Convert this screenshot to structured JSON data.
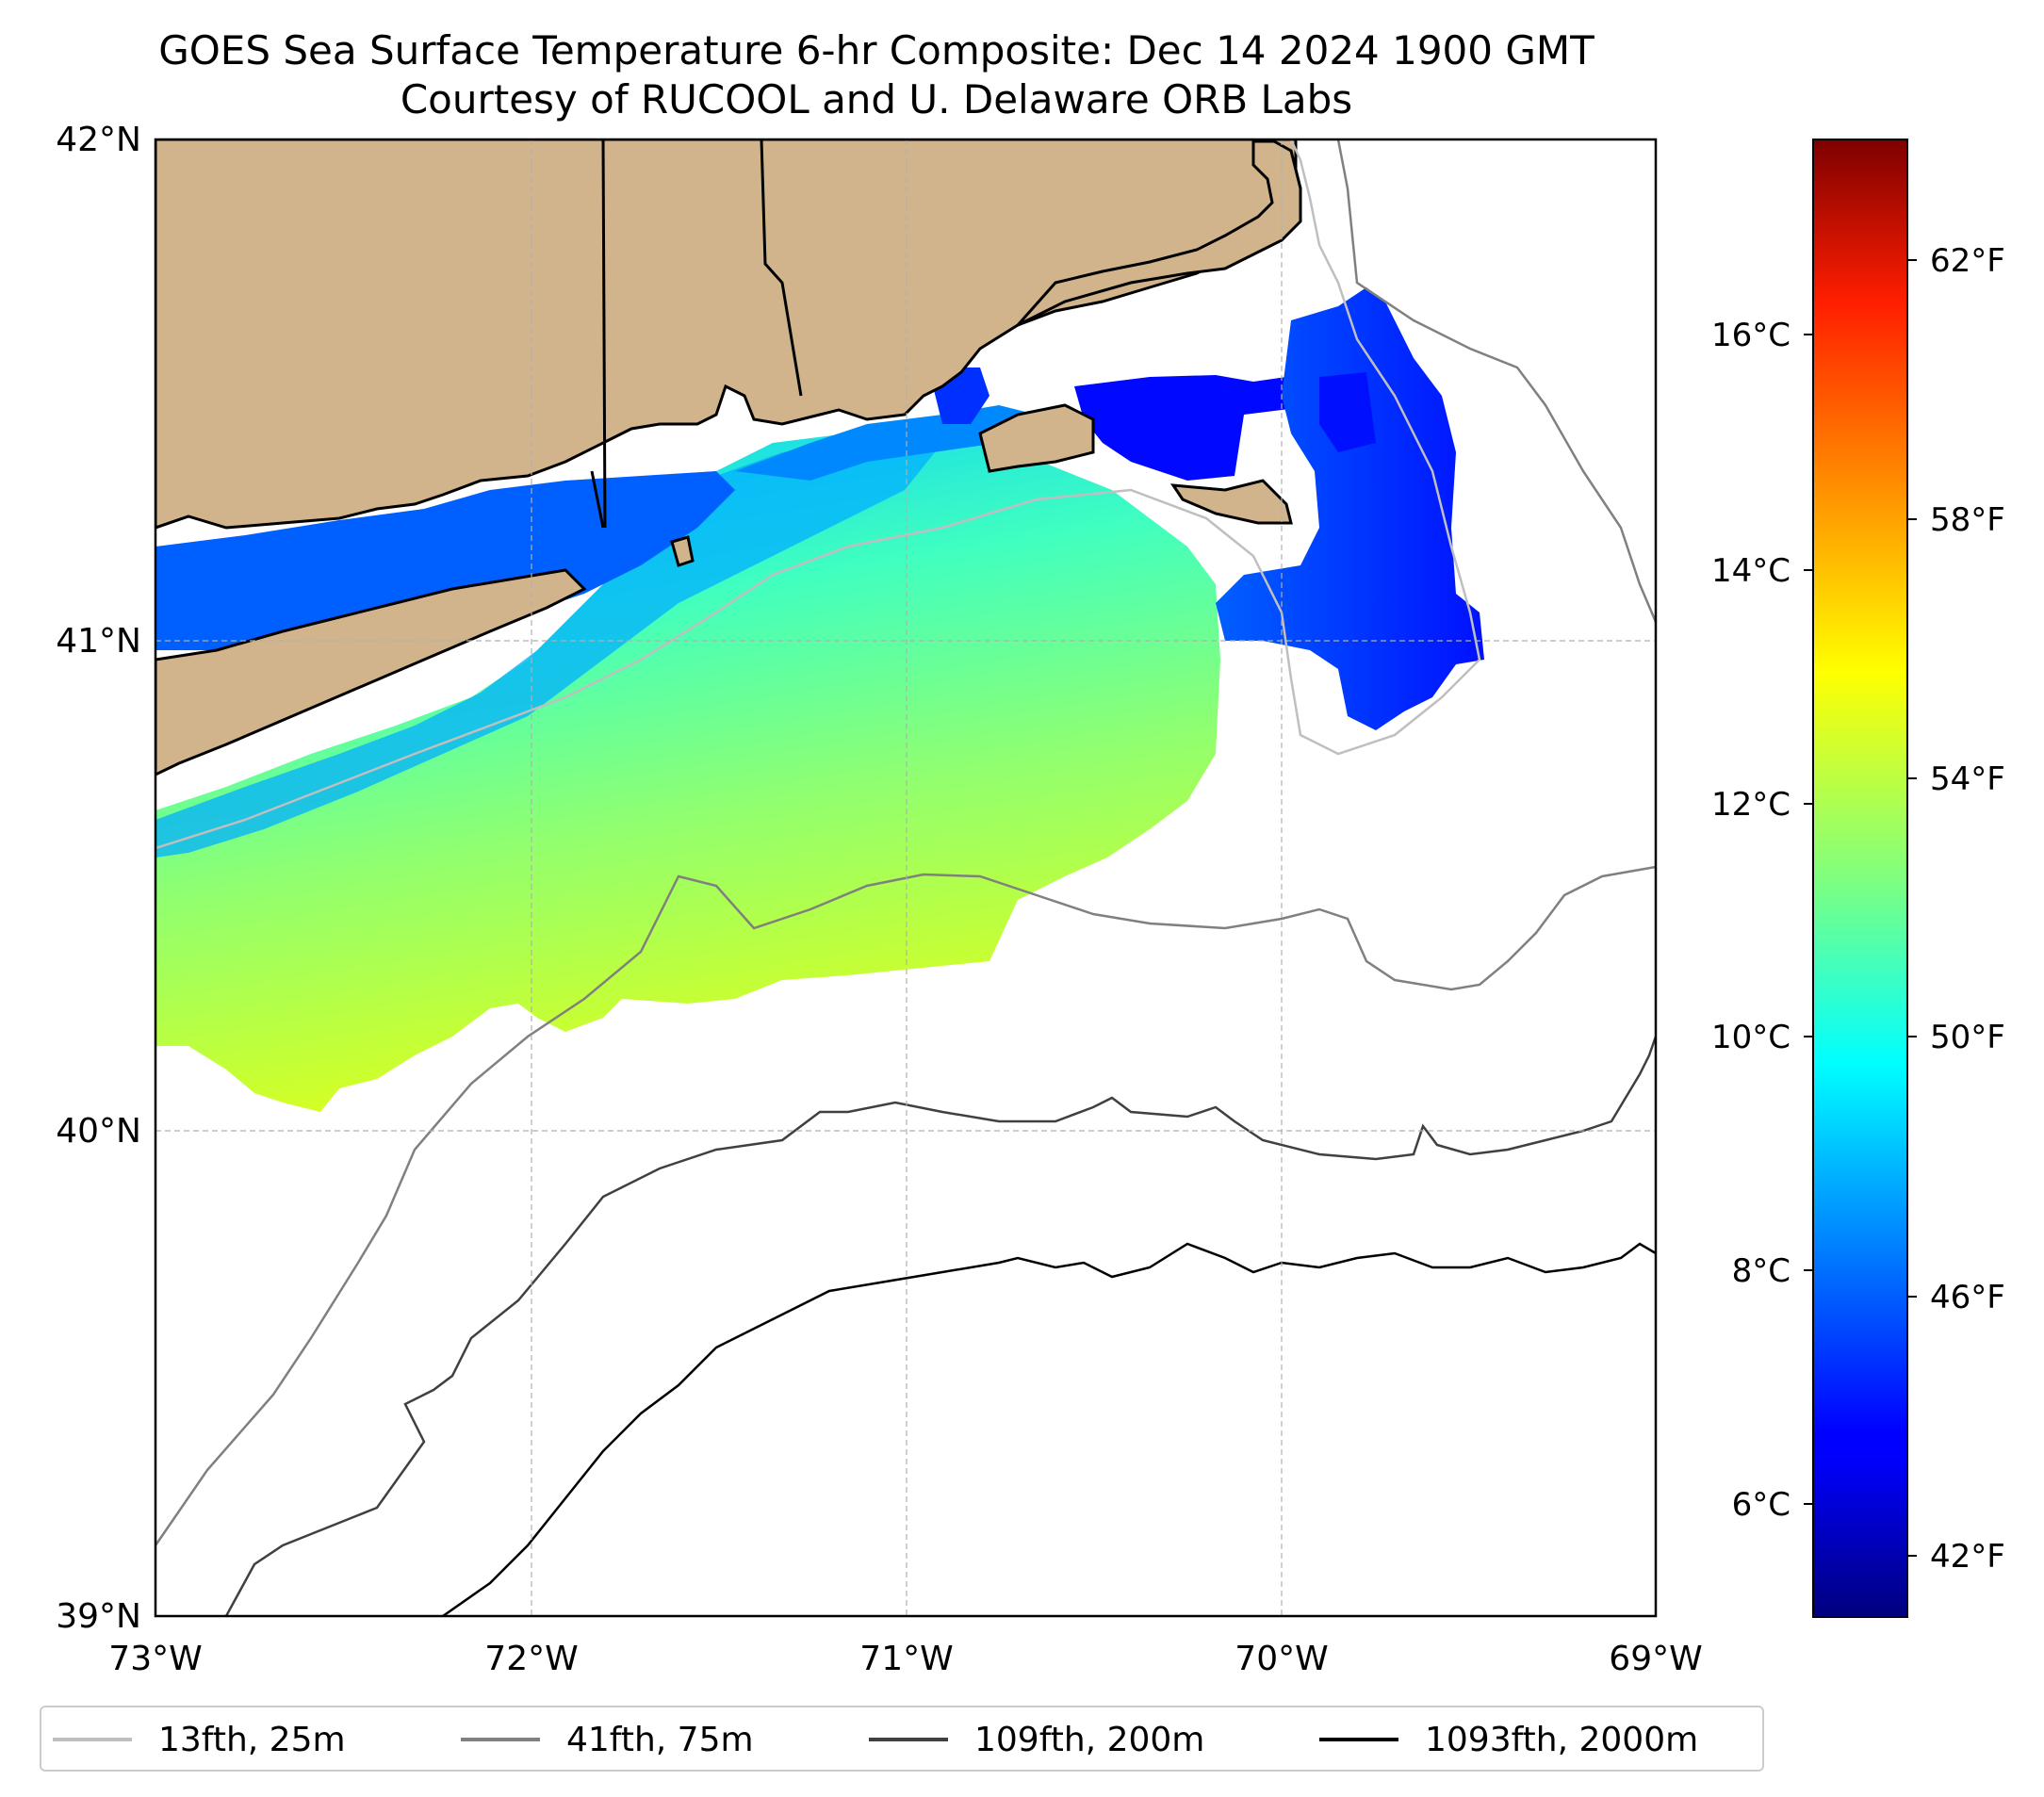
{
  "title": {
    "line1": "GOES Sea Surface Temperature 6-hr Composite: Dec 14 2024 1900 GMT",
    "line2": "Courtesy of RUCOOL and U. Delaware ORB Labs"
  },
  "map": {
    "extent": {
      "lon": [
        -73,
        -69
      ],
      "lat": [
        39,
        42
      ]
    },
    "x_ticks": [
      "73°W",
      "72°W",
      "71°W",
      "70°W",
      "69°W"
    ],
    "y_ticks": [
      "42°N",
      "41°N",
      "40°N",
      "39°N"
    ],
    "land_color": "#d2b48c",
    "grid": true
  },
  "colorbar": {
    "colormap": "jet",
    "range_c": [
      5.1,
      17.4
    ],
    "celsius_ticks": [
      "16°C",
      "14°C",
      "12°C",
      "10°C",
      "8°C",
      "6°C"
    ],
    "fahrenheit_ticks": [
      "62°F",
      "58°F",
      "54°F",
      "50°F",
      "46°F",
      "42°F"
    ]
  },
  "legend": {
    "items": [
      {
        "label": "13fth, 25m",
        "color": "#bfbfbf"
      },
      {
        "label": "41fth, 75m",
        "color": "#808080"
      },
      {
        "label": "109fth, 200m",
        "color": "#404040"
      },
      {
        "label": "1093fth, 2000m",
        "color": "#000000"
      }
    ]
  }
}
